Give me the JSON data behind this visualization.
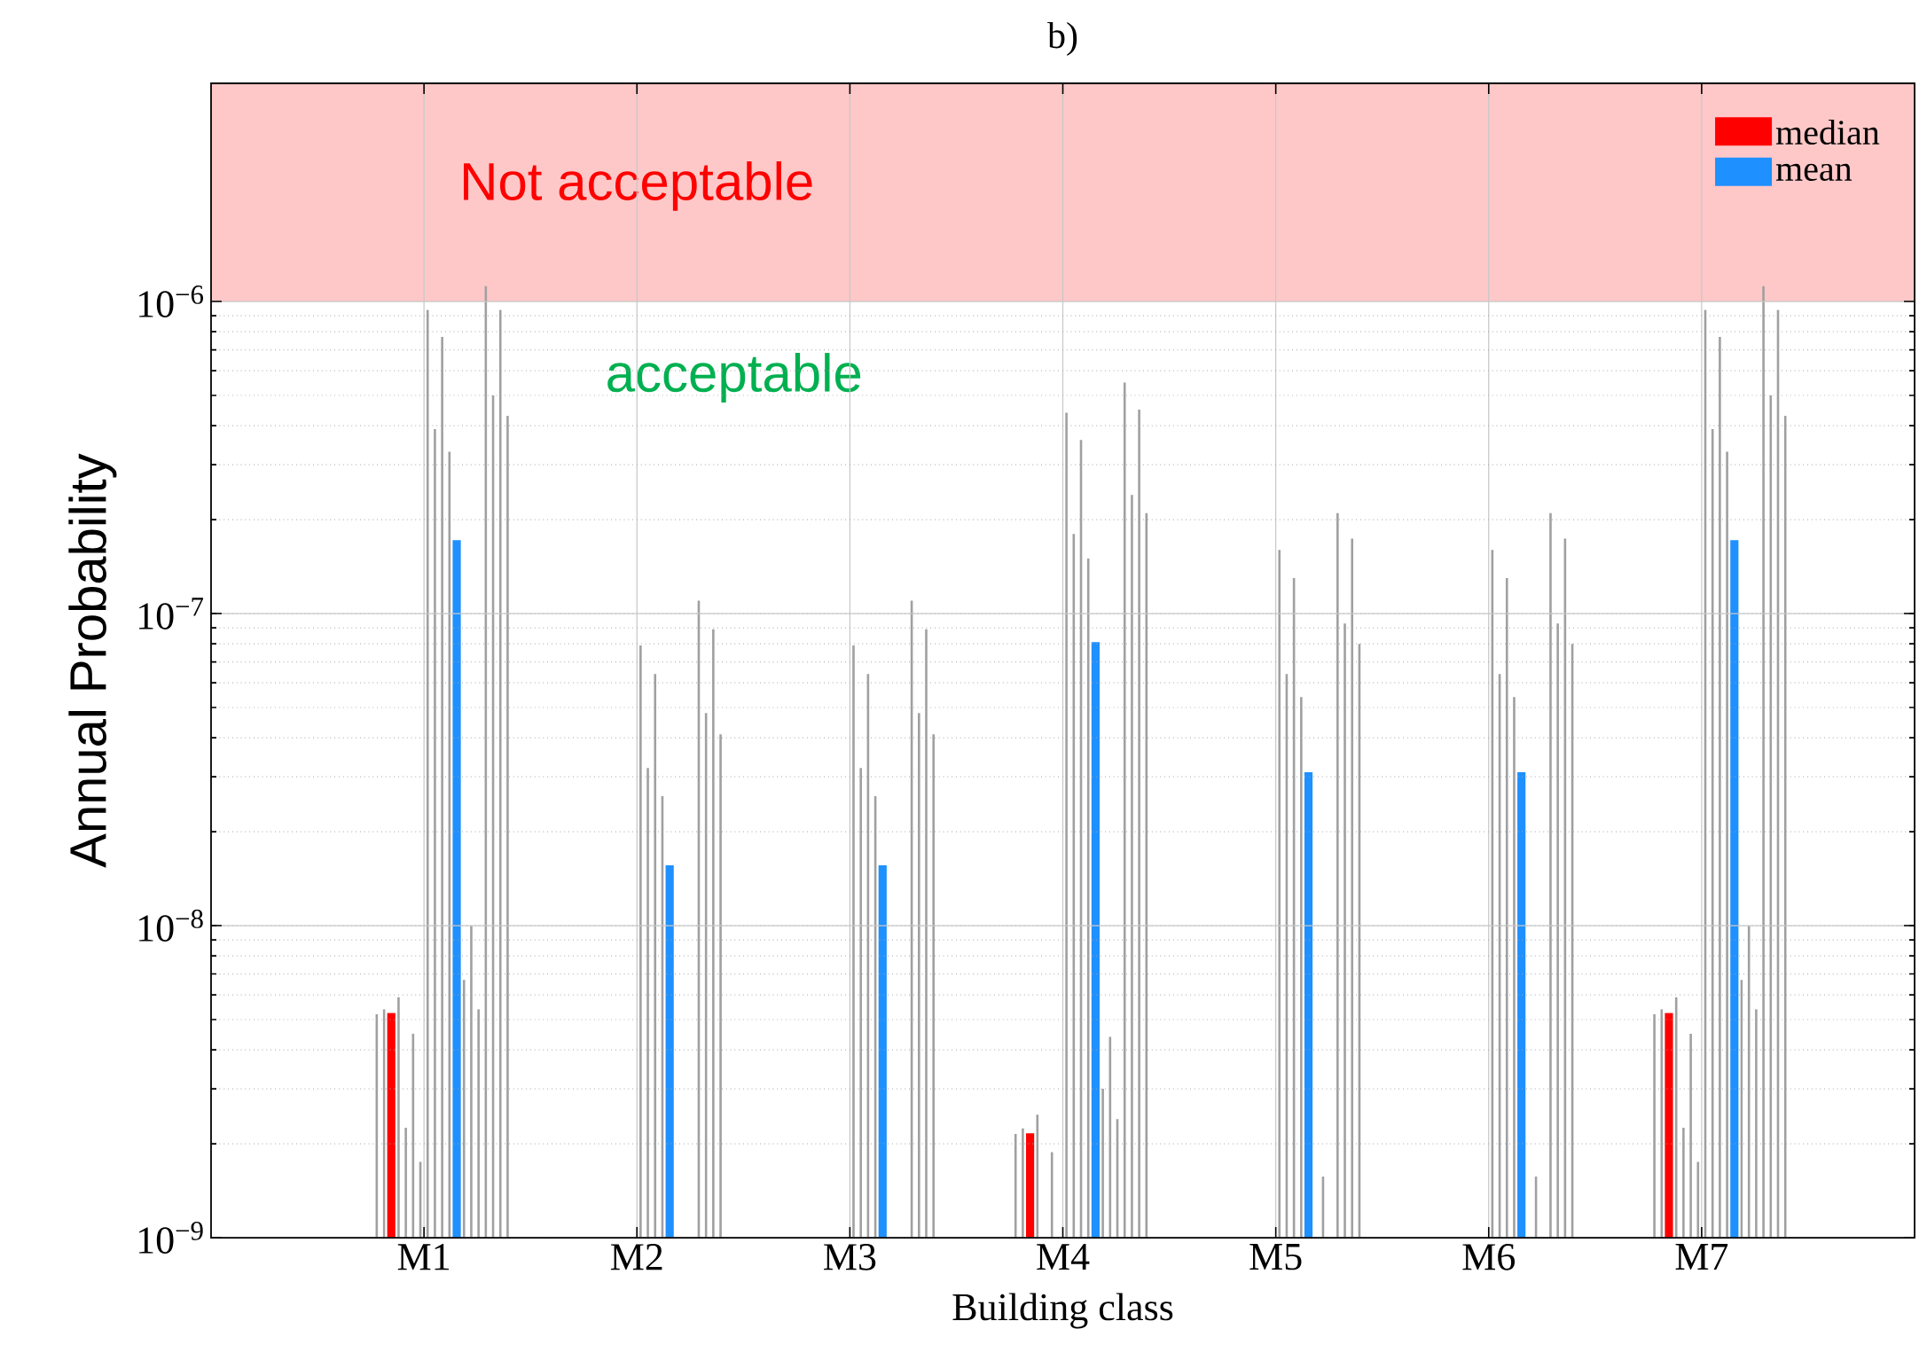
{
  "chart_data": {
    "type": "bar",
    "title": "b)",
    "xlabel": "Building class",
    "ylabel": "Annual Probability",
    "categories": [
      "M1",
      "M2",
      "M3",
      "M4",
      "M5",
      "M6",
      "M7"
    ],
    "log": "y",
    "grid": true,
    "legend": "top right",
    "ylim": [
      1e-09,
      5e-06
    ],
    "yticks": [
      {
        "value": 1e-09,
        "label": "10$^{−9}$"
      },
      {
        "value": 1e-08,
        "label": "10$^{−8}$"
      },
      {
        "value": 1e-07,
        "label": "10$^{−7}$"
      },
      {
        "value": 1e-06,
        "label": "10$^{−6}$"
      }
    ],
    "bands": [
      {
        "axis": "y",
        "from": 1e-06,
        "to": 5e-06,
        "label": "Not acceptable",
        "color": "#ffc8c8"
      }
    ],
    "annotations": [
      "acceptable"
    ],
    "series": [
      {
        "color": "#a0a0a0",
        "values": [
          5.2e-09,
          null,
          null,
          2.15e-09,
          null,
          null,
          5.2e-09
        ]
      },
      {
        "color": "#a0a0a0",
        "values": [
          5.4e-09,
          null,
          null,
          2.24e-09,
          null,
          null,
          5.4e-09
        ]
      },
      {
        "name": "median",
        "color": "#ff0000",
        "values": [
          5.25e-09,
          null,
          null,
          2.16e-09,
          null,
          null,
          5.25e-09
        ]
      },
      {
        "color": "#a0a0a0",
        "values": [
          5.9e-09,
          null,
          null,
          2.48e-09,
          null,
          null,
          5.9e-09
        ]
      },
      {
        "color": "#a0a0a0",
        "values": [
          2.25e-09,
          null,
          null,
          null,
          null,
          null,
          2.25e-09
        ]
      },
      {
        "color": "#a0a0a0",
        "values": [
          4.5e-09,
          null,
          null,
          1.88e-09,
          null,
          null,
          4.5e-09
        ]
      },
      {
        "color": "#a0a0a0",
        "values": [
          1.75e-09,
          null,
          null,
          null,
          null,
          null,
          1.75e-09
        ]
      },
      {
        "color": "#a0a0a0",
        "values": [
          9.4e-07,
          7.9e-08,
          7.9e-08,
          4.4e-07,
          1.6e-07,
          1.6e-07,
          9.4e-07
        ]
      },
      {
        "color": "#a0a0a0",
        "values": [
          3.9e-07,
          3.2e-08,
          3.2e-08,
          1.8e-07,
          6.4e-08,
          6.4e-08,
          3.9e-07
        ]
      },
      {
        "color": "#a0a0a0",
        "values": [
          7.7e-07,
          6.4e-08,
          6.4e-08,
          3.6e-07,
          1.3e-07,
          1.3e-07,
          7.7e-07
        ]
      },
      {
        "color": "#a0a0a0",
        "values": [
          3.3e-07,
          2.6e-08,
          2.6e-08,
          1.5e-07,
          5.4e-08,
          5.4e-08,
          3.3e-07
        ]
      },
      {
        "name": "mean",
        "color": "#1e90ff",
        "values": [
          1.72e-07,
          1.56e-08,
          1.56e-08,
          8.1e-08,
          3.1e-08,
          3.1e-08,
          1.72e-07
        ]
      },
      {
        "color": "#a0a0a0",
        "values": [
          6.7e-09,
          null,
          null,
          3e-09,
          null,
          null,
          6.7e-09
        ]
      },
      {
        "color": "#a0a0a0",
        "values": [
          1e-08,
          null,
          null,
          4.4e-09,
          1.57e-09,
          1.57e-09,
          1e-08
        ]
      },
      {
        "color": "#a0a0a0",
        "values": [
          5.4e-09,
          null,
          null,
          2.4e-09,
          null,
          null,
          5.4e-09
        ]
      },
      {
        "color": "#a0a0a0",
        "values": [
          1.12e-06,
          1.1e-07,
          1.1e-07,
          5.5e-07,
          2.1e-07,
          2.1e-07,
          1.12e-06
        ]
      },
      {
        "color": "#a0a0a0",
        "values": [
          5e-07,
          4.8e-08,
          4.8e-08,
          2.4e-07,
          9.3e-08,
          9.3e-08,
          5e-07
        ]
      },
      {
        "color": "#a0a0a0",
        "values": [
          9.4e-07,
          8.9e-08,
          8.9e-08,
          4.5e-07,
          1.74e-07,
          1.74e-07,
          9.4e-07
        ]
      },
      {
        "color": "#a0a0a0",
        "values": [
          4.3e-07,
          4.1e-08,
          4.1e-08,
          2.1e-07,
          8e-08,
          8e-08,
          4.3e-07
        ]
      }
    ]
  }
}
